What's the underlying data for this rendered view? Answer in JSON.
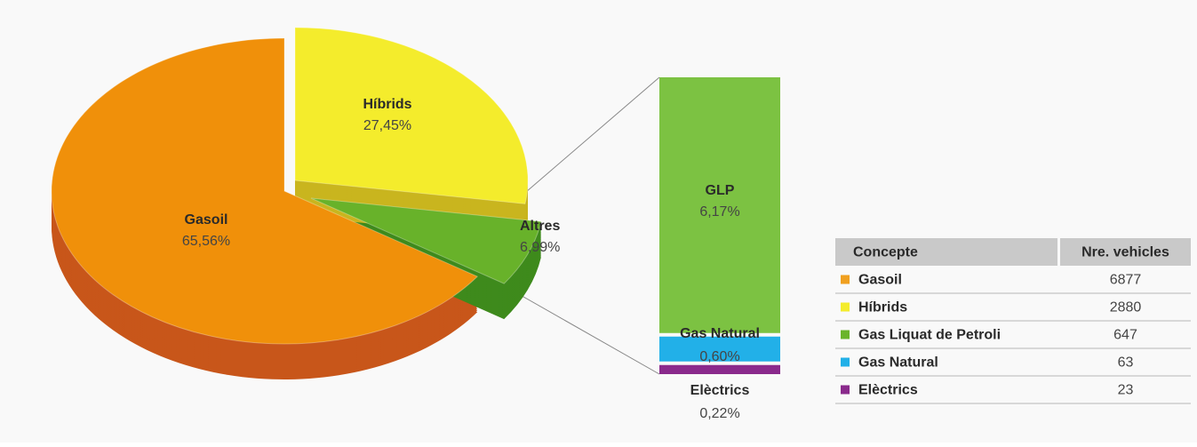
{
  "chart_data": {
    "type": "pie",
    "pie": {
      "categories": [
        "Gasoil",
        "Híbrids",
        "Altres"
      ],
      "values": [
        65.56,
        27.45,
        6.99
      ],
      "value_labels": [
        "65,56%",
        "27,45%",
        "6,99%"
      ],
      "colors": [
        "#f0900a",
        "#f4ec2c",
        "#68b22a"
      ],
      "side_colors": [
        "#c8561a",
        "#c9b51e",
        "#3e8a1c"
      ]
    },
    "bar": {
      "categories": [
        "GLP",
        "Gas Natural",
        "Elèctrics"
      ],
      "values": [
        6.17,
        0.6,
        0.22
      ],
      "value_labels": [
        "6,17%",
        "0,60%",
        "0,22%"
      ],
      "colors": [
        "#7cc242",
        "#22b0e8",
        "#8a2a8c"
      ]
    },
    "table": {
      "header": [
        "Concepte",
        "Nre. vehicles"
      ],
      "rows": [
        {
          "name": "Gasoil",
          "value": 6877,
          "color": "#f0a020"
        },
        {
          "name": "Híbrids",
          "value": 2880,
          "color": "#f4ec2c"
        },
        {
          "name": "Gas Liquat de Petroli",
          "value": 647,
          "color": "#6ab42a"
        },
        {
          "name": "Gas Natural",
          "value": 63,
          "color": "#22b0e8"
        },
        {
          "name": "Elèctrics",
          "value": 23,
          "color": "#8a2a8c"
        }
      ]
    }
  }
}
